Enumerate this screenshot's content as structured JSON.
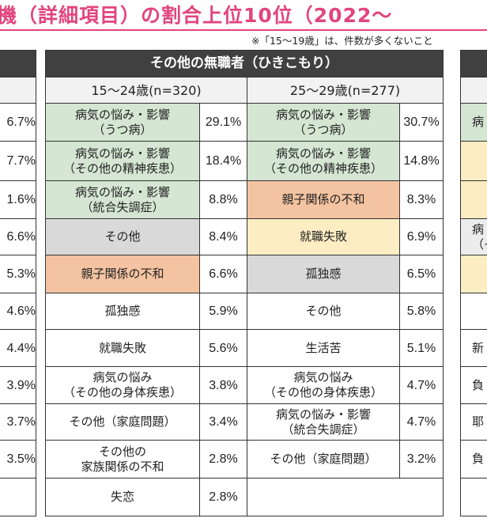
{
  "header": {
    "title": "機（詳細項目）の割合上位10位（2022～",
    "note": "※「15～19歳」は、件数が多くないこと"
  },
  "left_table": {
    "values": [
      "6.7%",
      "7.7%",
      "1.6%",
      "6.6%",
      "5.3%",
      "4.6%",
      "4.4%",
      "3.9%",
      "3.7%",
      "3.5%"
    ]
  },
  "table": {
    "title": "その他の無職者（ひきこもり）",
    "groups": [
      "15～24歳(n=320)",
      "25～29歳(n=277)"
    ],
    "rows": [
      [
        {
          "text": "病気の悩み・影響\n（うつ病）",
          "value": "29.1%",
          "color": "#d5e6d3"
        },
        {
          "text": "病気の悩み・影響\n（うつ病）",
          "value": "30.7%",
          "color": "#d5e6d3"
        }
      ],
      [
        {
          "text": "病気の悩み・影響\n（その他の精神疾患）",
          "value": "18.4%",
          "color": "#d5e6d3"
        },
        {
          "text": "病気の悩み・影響\n（その他の精神疾患）",
          "value": "14.8%",
          "color": "#d5e6d3"
        }
      ],
      [
        {
          "text": "病気の悩み・影響\n（統合失調症）",
          "value": "8.8%",
          "color": "#d5e6d3"
        },
        {
          "text": "親子関係の不和",
          "value": "8.3%",
          "color": "#f4c3a1"
        }
      ],
      [
        {
          "text": "その他",
          "value": "8.4%",
          "color": "#d9d9d9"
        },
        {
          "text": "就職失敗",
          "value": "6.9%",
          "color": "#fcedc3"
        }
      ],
      [
        {
          "text": "親子関係の不和",
          "value": "6.6%",
          "color": "#f4c3a1"
        },
        {
          "text": "孤独感",
          "value": "6.5%",
          "color": "#d9d9d9"
        }
      ],
      [
        {
          "text": "孤独感",
          "value": "5.9%",
          "color": "#ffffff"
        },
        {
          "text": "その他",
          "value": "5.8%",
          "color": "#ffffff"
        }
      ],
      [
        {
          "text": "就職失敗",
          "value": "5.6%",
          "color": "#ffffff"
        },
        {
          "text": "生活苦",
          "value": "5.1%",
          "color": "#ffffff"
        }
      ],
      [
        {
          "text": "病気の悩み\n（その他の身体疾患）",
          "value": "3.8%",
          "color": "#ffffff"
        },
        {
          "text": "病気の悩み\n（その他の身体疾患）",
          "value": "4.7%",
          "color": "#ffffff"
        }
      ],
      [
        {
          "text": "その他（家庭問題）",
          "value": "3.4%",
          "color": "#ffffff"
        },
        {
          "text": "病気の悩み・影響\n（統合失調症）",
          "value": "4.7%",
          "color": "#ffffff"
        }
      ],
      [
        {
          "text": "その他の\n家族関係の不和",
          "value": "2.8%",
          "color": "#ffffff"
        },
        {
          "text": "その他（家庭問題）",
          "value": "3.2%",
          "color": "#ffffff"
        }
      ],
      [
        {
          "text": "失恋",
          "value": "2.8%",
          "color": "#ffffff"
        },
        null
      ]
    ]
  },
  "right_table": {
    "cells": [
      {
        "text": "病",
        "color": "#d5e6d3"
      },
      {
        "text": null,
        "color": "#fcedc3"
      },
      {
        "text": null,
        "color": "#fcedc3"
      },
      {
        "text": "病\n（そ",
        "color": "#ececec"
      },
      {
        "text": null,
        "color": "#fcedc3"
      },
      {
        "text": null,
        "color": "#ffffff"
      },
      {
        "text": "新",
        "color": "#ffffff"
      },
      {
        "text": "負",
        "color": "#ffffff"
      },
      {
        "text": "耶",
        "color": "#ffffff"
      },
      {
        "text": "負",
        "color": "#ffffff"
      },
      {
        "text": null,
        "color": "#ffffff"
      }
    ]
  }
}
